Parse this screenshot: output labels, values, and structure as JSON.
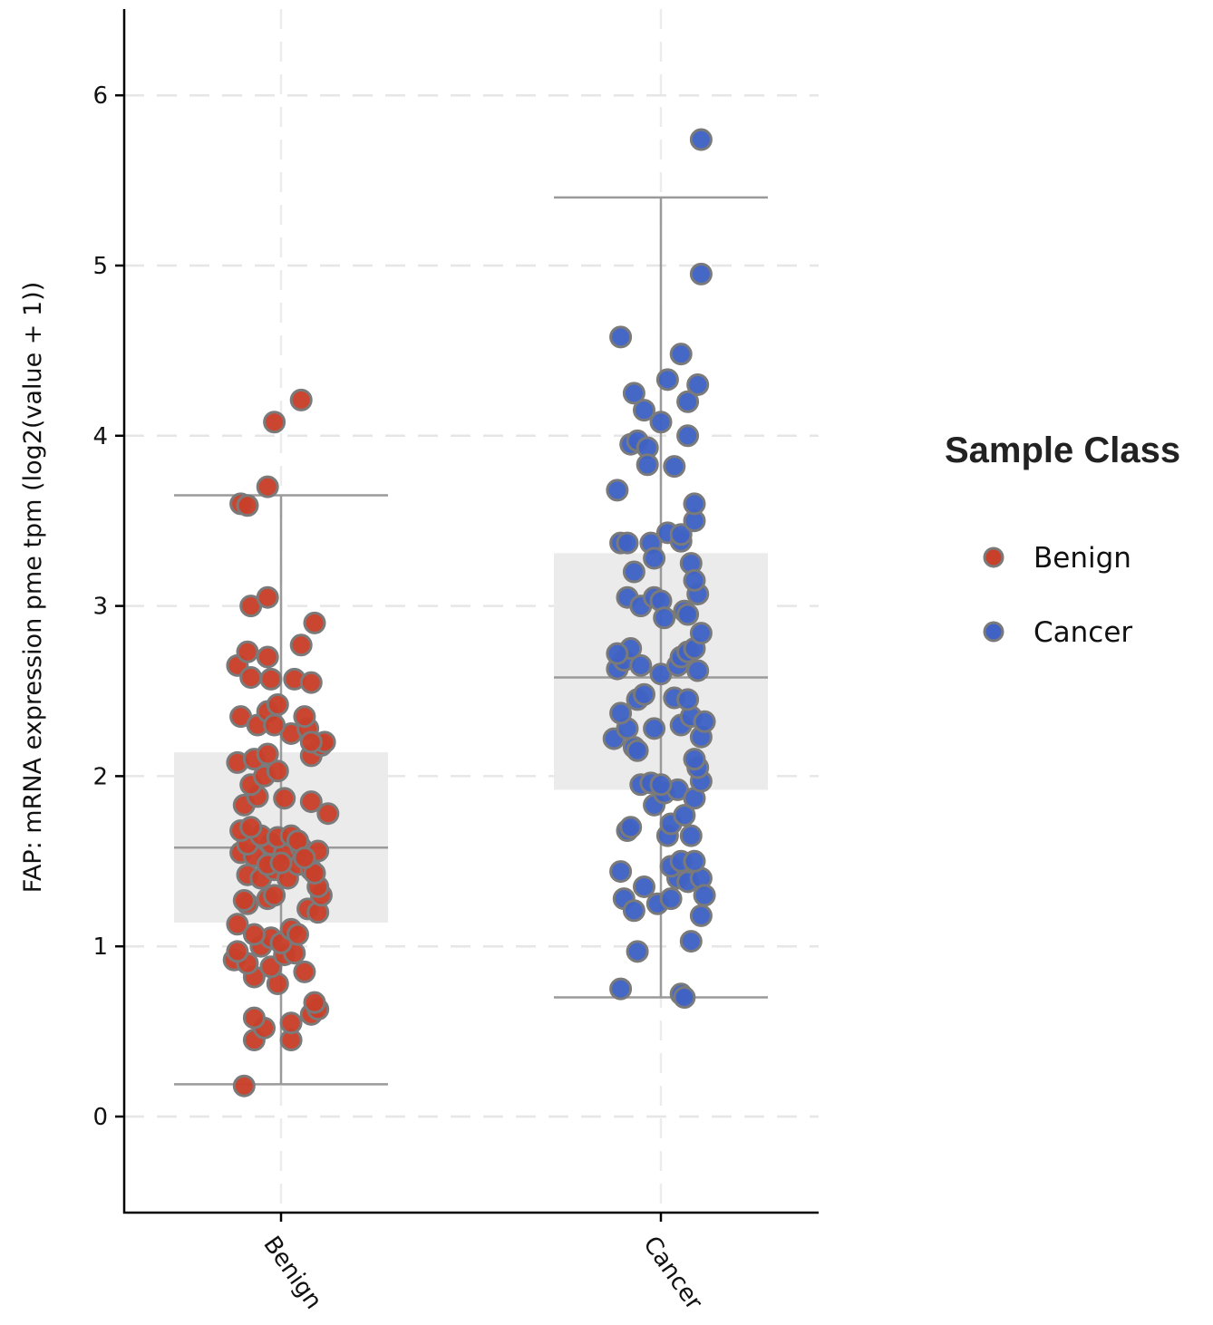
{
  "chart_data": {
    "type": "scatter",
    "ylabel": "FAP: mRNA expression pme tpm (log2(value + 1))",
    "xlabel": "",
    "categories": [
      "Benign",
      "Cancer"
    ],
    "ylim": [
      -0.5,
      6.5
    ],
    "yticks": [
      0,
      1,
      2,
      3,
      4,
      5,
      6
    ],
    "grid": true,
    "legend": {
      "title": "Sample Class",
      "position": "right",
      "entries": [
        "Benign",
        "Cancer"
      ]
    },
    "colors": {
      "Benign": "#c8402a",
      "Cancer": "#3f62c4",
      "box": "#ebebeb",
      "whisker": "#9a9a9a"
    },
    "boxes": [
      {
        "name": "Benign",
        "whisker_low": 0.19,
        "q1": 1.14,
        "median": 1.58,
        "q3": 2.14,
        "whisker_high": 3.65
      },
      {
        "name": "Cancer",
        "whisker_low": 0.7,
        "q1": 1.92,
        "median": 2.58,
        "q3": 3.31,
        "whisker_high": 5.4
      }
    ],
    "series": [
      {
        "name": "Benign",
        "points": [
          [
            -0.11,
            0.18
          ],
          [
            -0.08,
            0.45
          ],
          [
            -0.05,
            0.52
          ],
          [
            0.03,
            0.45
          ],
          [
            -0.08,
            0.58
          ],
          [
            0.09,
            0.6
          ],
          [
            0.11,
            0.63
          ],
          [
            0.03,
            0.55
          ],
          [
            0.1,
            0.67
          ],
          [
            -0.08,
            0.82
          ],
          [
            -0.01,
            0.78
          ],
          [
            0.07,
            0.85
          ],
          [
            -0.14,
            0.92
          ],
          [
            -0.1,
            0.9
          ],
          [
            -0.03,
            0.88
          ],
          [
            0.01,
            0.95
          ],
          [
            0.04,
            0.96
          ],
          [
            -0.13,
            0.97
          ],
          [
            -0.06,
            1.0
          ],
          [
            -0.03,
            1.05
          ],
          [
            0.0,
            1.02
          ],
          [
            0.03,
            1.1
          ],
          [
            0.05,
            1.07
          ],
          [
            -0.08,
            1.07
          ],
          [
            -0.13,
            1.13
          ],
          [
            -0.1,
            1.25
          ],
          [
            -0.04,
            1.28
          ],
          [
            0.08,
            1.22
          ],
          [
            0.11,
            1.2
          ],
          [
            0.12,
            1.3
          ],
          [
            0.11,
            1.35
          ],
          [
            -0.11,
            1.27
          ],
          [
            -0.02,
            1.3
          ],
          [
            -0.1,
            1.42
          ],
          [
            -0.06,
            1.4
          ],
          [
            -0.02,
            1.45
          ],
          [
            0.02,
            1.4
          ],
          [
            0.05,
            1.48
          ],
          [
            0.09,
            1.45
          ],
          [
            0.1,
            1.43
          ],
          [
            -0.04,
            1.5
          ],
          [
            -0.12,
            1.55
          ],
          [
            -0.08,
            1.53
          ],
          [
            -0.03,
            1.6
          ],
          [
            0.01,
            1.55
          ],
          [
            0.06,
            1.58
          ],
          [
            0.11,
            1.56
          ],
          [
            -0.1,
            1.6
          ],
          [
            -0.06,
            1.65
          ],
          [
            -0.01,
            1.64
          ],
          [
            0.03,
            1.65
          ],
          [
            0.05,
            1.62
          ],
          [
            -0.12,
            1.68
          ],
          [
            -0.09,
            1.7
          ],
          [
            0.07,
            1.52
          ],
          [
            -0.04,
            1.48
          ],
          [
            0.0,
            1.49
          ],
          [
            -0.11,
            1.83
          ],
          [
            -0.07,
            1.88
          ],
          [
            0.01,
            1.87
          ],
          [
            0.09,
            1.85
          ],
          [
            0.14,
            1.78
          ],
          [
            -0.09,
            1.95
          ],
          [
            -0.05,
            2.0
          ],
          [
            -0.01,
            2.03
          ],
          [
            -0.13,
            2.08
          ],
          [
            -0.08,
            2.1
          ],
          [
            -0.04,
            2.13
          ],
          [
            0.03,
            2.25
          ],
          [
            0.08,
            2.28
          ],
          [
            0.09,
            2.12
          ],
          [
            0.12,
            2.18
          ],
          [
            0.13,
            2.2
          ],
          [
            -0.12,
            2.35
          ],
          [
            -0.07,
            2.3
          ],
          [
            -0.04,
            2.38
          ],
          [
            -0.02,
            2.3
          ],
          [
            -0.01,
            2.42
          ],
          [
            0.07,
            2.35
          ],
          [
            0.09,
            2.2
          ],
          [
            -0.13,
            2.65
          ],
          [
            -0.1,
            2.73
          ],
          [
            -0.09,
            2.58
          ],
          [
            -0.04,
            2.7
          ],
          [
            -0.03,
            2.57
          ],
          [
            0.04,
            2.57
          ],
          [
            0.06,
            2.77
          ],
          [
            0.09,
            2.55
          ],
          [
            0.1,
            2.9
          ],
          [
            -0.09,
            3.0
          ],
          [
            -0.04,
            3.05
          ],
          [
            -0.12,
            3.6
          ],
          [
            -0.1,
            3.59
          ],
          [
            -0.04,
            3.7
          ],
          [
            -0.02,
            4.08
          ],
          [
            0.06,
            4.21
          ]
        ]
      },
      {
        "name": "Cancer",
        "points": [
          [
            -0.12,
            0.75
          ],
          [
            0.06,
            0.72
          ],
          [
            0.07,
            0.7
          ],
          [
            -0.07,
            0.97
          ],
          [
            0.09,
            1.03
          ],
          [
            -0.11,
            1.28
          ],
          [
            -0.08,
            1.21
          ],
          [
            -0.05,
            1.35
          ],
          [
            -0.01,
            1.25
          ],
          [
            0.03,
            1.28
          ],
          [
            0.05,
            1.4
          ],
          [
            0.08,
            1.38
          ],
          [
            0.12,
            1.4
          ],
          [
            0.13,
            1.3
          ],
          [
            0.12,
            1.18
          ],
          [
            -0.12,
            1.44
          ],
          [
            0.03,
            1.47
          ],
          [
            0.06,
            1.5
          ],
          [
            0.1,
            1.5
          ],
          [
            -0.1,
            1.68
          ],
          [
            -0.09,
            1.7
          ],
          [
            0.02,
            1.65
          ],
          [
            0.03,
            1.72
          ],
          [
            0.07,
            1.77
          ],
          [
            0.09,
            1.65
          ],
          [
            -0.02,
            1.83
          ],
          [
            0.01,
            1.9
          ],
          [
            0.05,
            1.92
          ],
          [
            0.1,
            1.87
          ],
          [
            0.12,
            1.97
          ],
          [
            -0.06,
            1.95
          ],
          [
            -0.03,
            1.96
          ],
          [
            0.0,
            1.95
          ],
          [
            0.11,
            2.05
          ],
          [
            -0.14,
            2.22
          ],
          [
            -0.1,
            2.28
          ],
          [
            -0.08,
            2.17
          ],
          [
            -0.07,
            2.15
          ],
          [
            -0.02,
            2.28
          ],
          [
            0.06,
            2.3
          ],
          [
            0.09,
            2.35
          ],
          [
            0.12,
            2.23
          ],
          [
            0.13,
            2.32
          ],
          [
            0.1,
            2.1
          ],
          [
            -0.12,
            2.37
          ],
          [
            -0.07,
            2.45
          ],
          [
            -0.05,
            2.48
          ],
          [
            0.04,
            2.46
          ],
          [
            0.08,
            2.45
          ],
          [
            -0.13,
            2.63
          ],
          [
            -0.11,
            2.68
          ],
          [
            -0.09,
            2.75
          ],
          [
            -0.06,
            2.65
          ],
          [
            0.0,
            2.6
          ],
          [
            0.05,
            2.65
          ],
          [
            0.06,
            2.7
          ],
          [
            0.08,
            2.73
          ],
          [
            0.1,
            2.75
          ],
          [
            0.11,
            2.62
          ],
          [
            -0.13,
            2.72
          ],
          [
            -0.1,
            3.05
          ],
          [
            -0.06,
            3.0
          ],
          [
            -0.02,
            3.05
          ],
          [
            0.0,
            3.03
          ],
          [
            0.01,
            2.93
          ],
          [
            0.07,
            2.97
          ],
          [
            0.08,
            2.95
          ],
          [
            0.11,
            3.07
          ],
          [
            0.12,
            2.84
          ],
          [
            -0.12,
            3.37
          ],
          [
            -0.1,
            3.37
          ],
          [
            -0.08,
            3.2
          ],
          [
            -0.03,
            3.37
          ],
          [
            -0.02,
            3.28
          ],
          [
            0.02,
            3.43
          ],
          [
            0.06,
            3.38
          ],
          [
            0.06,
            3.42
          ],
          [
            0.09,
            3.25
          ],
          [
            0.1,
            3.15
          ],
          [
            0.1,
            3.5
          ],
          [
            0.1,
            3.6
          ],
          [
            -0.13,
            3.68
          ],
          [
            -0.09,
            3.95
          ],
          [
            -0.07,
            3.97
          ],
          [
            -0.04,
            3.93
          ],
          [
            -0.04,
            3.83
          ],
          [
            0.04,
            3.82
          ],
          [
            -0.08,
            4.25
          ],
          [
            -0.05,
            4.15
          ],
          [
            0.0,
            4.08
          ],
          [
            0.02,
            4.33
          ],
          [
            0.08,
            4.2
          ],
          [
            0.08,
            4.0
          ],
          [
            0.06,
            4.48
          ],
          [
            0.11,
            4.3
          ],
          [
            -0.12,
            4.58
          ],
          [
            0.12,
            4.95
          ],
          [
            0.12,
            5.74
          ]
        ]
      }
    ]
  }
}
